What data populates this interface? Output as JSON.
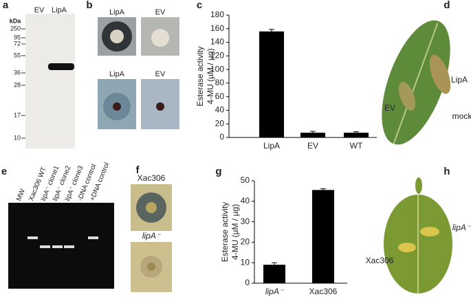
{
  "panel_labels": [
    "a",
    "b",
    "c",
    "d",
    "e",
    "f",
    "g",
    "h"
  ],
  "blot": {
    "lanes": [
      "EV",
      "LipA"
    ],
    "unit": "kDa",
    "markers": [
      250,
      95,
      72,
      55,
      36,
      28,
      17,
      10
    ]
  },
  "plates_b": [
    "LipA",
    "EV",
    "LipA",
    "EV"
  ],
  "leaf_d": [
    "LipA",
    "EV",
    "mock"
  ],
  "gel": [
    "MW",
    "Xac306 WT",
    "lipA⁻ clone1",
    "lipA⁻ clone2",
    "lipA⁻ clone3",
    "-DNA control",
    "+DNA control"
  ],
  "colonies_f": [
    "Xac306",
    "lipA⁻"
  ],
  "leaf_h": [
    "lipA⁻",
    "Xac306"
  ],
  "chart_data": [
    {
      "type": "bar",
      "y_label": [
        "Esterase activity",
        "4-MU (µM / µg)"
      ],
      "categories": [
        "LipA",
        "EV",
        "WT"
      ],
      "values": [
        156,
        7,
        7
      ],
      "errors": [
        3,
        2,
        1.5
      ],
      "color": "#000000",
      "ylim": [
        0,
        180
      ],
      "yticks": [
        0,
        20,
        40,
        60,
        80,
        100,
        120,
        140,
        160,
        180
      ]
    },
    {
      "type": "bar",
      "y_label": [
        "Esterase activity",
        "4-MU (µM / µg)"
      ],
      "categories": [
        "lipA⁻",
        "Xac306"
      ],
      "values": [
        9,
        45.5
      ],
      "errors": [
        1,
        0.6
      ],
      "color": "#000000",
      "ylim": [
        0,
        50
      ],
      "yticks": [
        0,
        10,
        20,
        30,
        40,
        50
      ]
    }
  ]
}
